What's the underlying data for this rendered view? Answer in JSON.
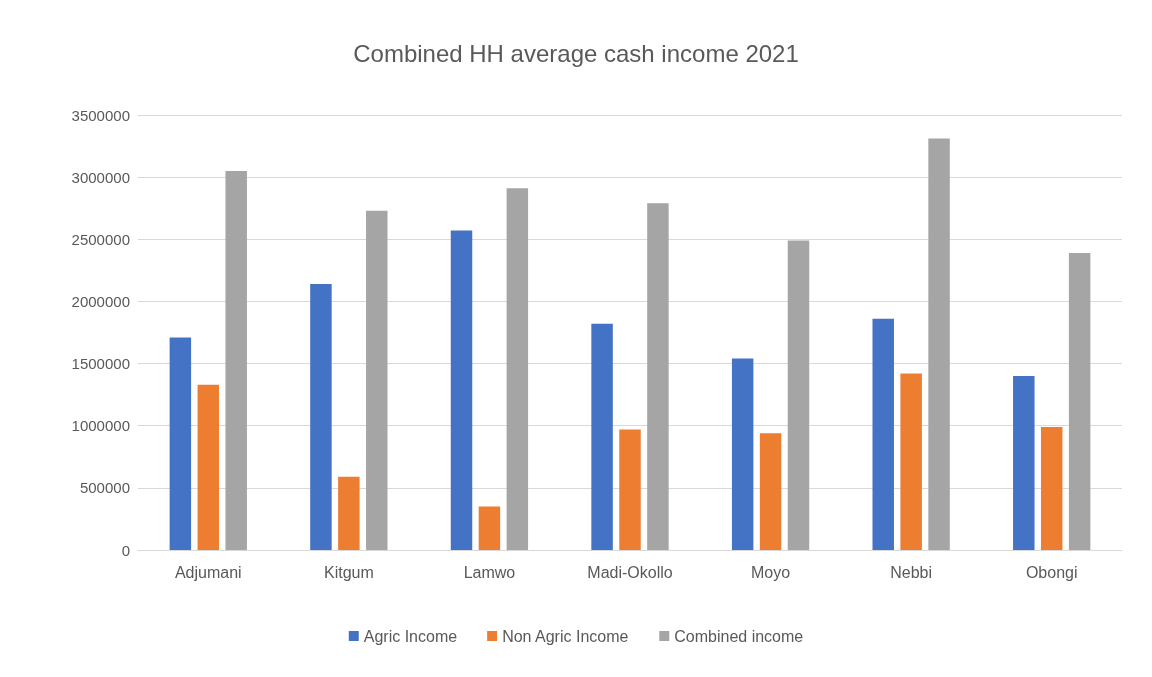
{
  "chart_data": {
    "type": "bar",
    "title": "Combined HH average cash income 2021",
    "categories": [
      "Adjumani",
      "Kitgum",
      "Lamwo",
      "Madi-Okollo",
      "Moyo",
      "Nebbi",
      "Obongi"
    ],
    "series": [
      {
        "name": "Agric Income",
        "color": "#4472c4",
        "values": [
          1710000,
          2140000,
          2570000,
          1820000,
          1540000,
          1860000,
          1400000
        ]
      },
      {
        "name": "Non Agric Income",
        "color": "#ed7d31",
        "values": [
          1330000,
          590000,
          350000,
          970000,
          940000,
          1420000,
          990000
        ]
      },
      {
        "name": "Combined income",
        "color": "#a5a5a5",
        "values": [
          3050000,
          2730000,
          2910000,
          2790000,
          2490000,
          3310000,
          2390000
        ]
      }
    ],
    "ylim": [
      0,
      3500000
    ],
    "yticks": [
      0,
      500000,
      1000000,
      1500000,
      2000000,
      2500000,
      3000000,
      3500000
    ],
    "grid": "y",
    "legend": "bottom"
  }
}
